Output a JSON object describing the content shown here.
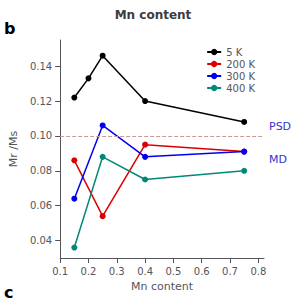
{
  "chart_data": {
    "type": "line",
    "title": "Mn content",
    "xlabel": "Mn content",
    "ylabel": "Mr /Ms",
    "panel_labels": [
      "b",
      "c"
    ],
    "xlim": [
      0.1,
      0.82
    ],
    "xticks": [
      0.1,
      0.2,
      0.3,
      0.4,
      0.5,
      0.6,
      0.7,
      0.8
    ],
    "ylim": [
      0.03,
      0.155
    ],
    "yticks": [
      0.04,
      0.06,
      0.08,
      {
        "value": 0.1,
        "label": "0.10"
      },
      0.12,
      0.14
    ],
    "grid": false,
    "legend": "upper right",
    "series": [
      {
        "name": "5 K",
        "color": "#000000",
        "marker": "circle",
        "x": [
          0.15,
          0.2,
          0.25,
          0.4,
          0.75
        ],
        "values": [
          0.122,
          0.133,
          0.146,
          0.12,
          0.108
        ]
      },
      {
        "name": "200 K",
        "color": "#dd0000",
        "marker": "circle",
        "x": [
          0.15,
          0.25,
          0.4,
          0.75
        ],
        "values": [
          0.086,
          0.054,
          0.095,
          0.091
        ]
      },
      {
        "name": "300 K",
        "color": "#0000ee",
        "marker": "circle",
        "x": [
          0.15,
          0.25,
          0.4,
          0.75
        ],
        "values": [
          0.064,
          0.106,
          0.088,
          0.091
        ]
      },
      {
        "name": "400 K",
        "color": "#008878",
        "marker": "circle",
        "x": [
          0.15,
          0.25,
          0.4,
          0.75
        ],
        "values": [
          0.036,
          0.088,
          0.075,
          0.08
        ]
      }
    ],
    "reference_lines": [
      {
        "y": 0.1,
        "color": "#cc9999",
        "line_style": "dashed"
      }
    ],
    "annotations": [
      {
        "text": "PSD",
        "x": 0.82,
        "y": 0.1,
        "color": "#3333cc"
      },
      {
        "text": "MD",
        "x": 0.82,
        "y": 0.091,
        "color": "#3333cc"
      }
    ]
  }
}
